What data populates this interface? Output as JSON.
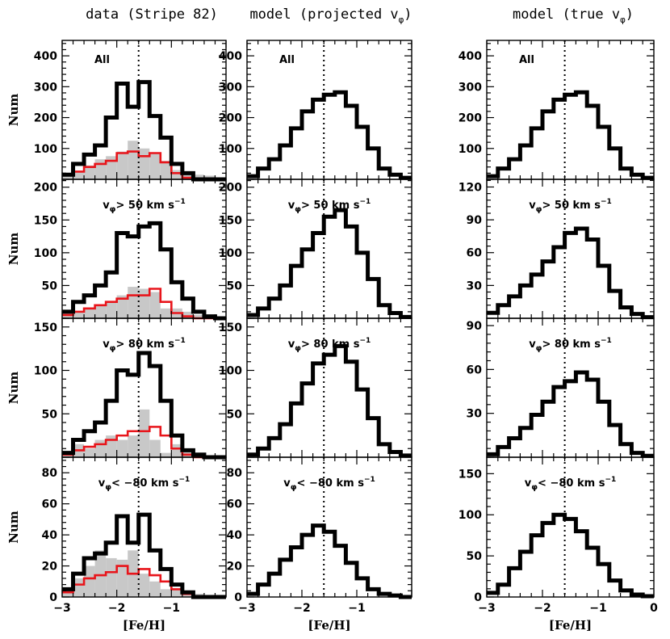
{
  "column_titles": [
    "data (Stripe 82)",
    "model (projected v",
    "model (true v"
  ],
  "column_title_subscript": "φ",
  "ylabel": "Num",
  "xlabel": "[Fe/H]",
  "colors": {
    "black": "#000000",
    "red": "#e8151b",
    "gray": "#c8c8c8",
    "dotted_line": "#000000"
  },
  "chart_data": [
    {
      "type": "histogram",
      "panel": "data-row1",
      "label": "All",
      "x_range": [
        -3,
        0
      ],
      "ylim": [
        0,
        450
      ],
      "yticks": [
        100,
        200,
        300,
        400
      ],
      "xticks": [
        -3,
        -2,
        -1
      ],
      "dotted_x": -1.6,
      "grid": false,
      "bin_edges": [
        -3.0,
        -2.8,
        -2.6,
        -2.4,
        -2.2,
        -2.0,
        -1.8,
        -1.6,
        -1.4,
        -1.2,
        -1.0,
        -0.8,
        -0.6,
        -0.4,
        -0.2,
        0.0
      ],
      "series": [
        {
          "name": "",
          "style": "gray-filled",
          "values": [
            20,
            25,
            45,
            65,
            75,
            90,
            125,
            100,
            85,
            60,
            30,
            20,
            15,
            12,
            5
          ]
        },
        {
          "name": "",
          "style": "red-step",
          "values": [
            15,
            25,
            40,
            50,
            60,
            85,
            90,
            75,
            85,
            55,
            20,
            5,
            0,
            0,
            0
          ]
        },
        {
          "name": "",
          "style": "black-step",
          "values": [
            15,
            50,
            80,
            110,
            200,
            310,
            235,
            315,
            205,
            135,
            50,
            20,
            0,
            0,
            0
          ]
        }
      ]
    },
    {
      "type": "histogram",
      "panel": "model-proj-row1",
      "label": "All",
      "x_range": [
        -3,
        0
      ],
      "ylim": [
        0,
        450
      ],
      "yticks": [
        100,
        200,
        300,
        400
      ],
      "xticks": [
        -3,
        -2,
        -1
      ],
      "dotted_x": -1.6,
      "grid": false,
      "bin_edges": [
        -3.0,
        -2.8,
        -2.6,
        -2.4,
        -2.2,
        -2.0,
        -1.8,
        -1.6,
        -1.4,
        -1.2,
        -1.0,
        -0.8,
        -0.6,
        -0.4,
        -0.2,
        0.0
      ],
      "series": [
        {
          "name": "",
          "style": "black-step",
          "values": [
            10,
            35,
            65,
            110,
            165,
            220,
            258,
            274,
            282,
            238,
            170,
            100,
            35,
            15,
            5
          ]
        }
      ]
    },
    {
      "type": "histogram",
      "panel": "model-true-row1",
      "label": "All",
      "x_range": [
        -3,
        0
      ],
      "ylim": [
        0,
        450
      ],
      "yticks": [
        100,
        200,
        300,
        400
      ],
      "xticks": [
        -3,
        -2,
        -1,
        0
      ],
      "dotted_x": -1.6,
      "grid": false,
      "bin_edges": [
        -3.0,
        -2.8,
        -2.6,
        -2.4,
        -2.2,
        -2.0,
        -1.8,
        -1.6,
        -1.4,
        -1.2,
        -1.0,
        -0.8,
        -0.6,
        -0.4,
        -0.2,
        0.0
      ],
      "series": [
        {
          "name": "",
          "style": "black-step",
          "values": [
            10,
            35,
            65,
            110,
            165,
            220,
            258,
            274,
            282,
            238,
            170,
            100,
            35,
            15,
            5
          ]
        }
      ]
    },
    {
      "type": "histogram",
      "panel": "data-row2",
      "label": "v_φ> 50 km s^-1",
      "x_range": [
        -3,
        0
      ],
      "ylim": [
        0,
        212
      ],
      "yticks": [
        50,
        100,
        150,
        200
      ],
      "xticks": [
        -3,
        -2,
        -1
      ],
      "dotted_x": -1.6,
      "grid": false,
      "bin_edges": [
        -3.0,
        -2.8,
        -2.6,
        -2.4,
        -2.2,
        -2.0,
        -1.8,
        -1.6,
        -1.4,
        -1.2,
        -1.0,
        -0.8,
        -0.6,
        -0.4,
        -0.2,
        0.0
      ],
      "series": [
        {
          "name": "",
          "style": "gray-filled",
          "values": [
            5,
            10,
            15,
            20,
            25,
            35,
            48,
            45,
            40,
            15,
            15,
            10,
            5,
            0,
            0
          ]
        },
        {
          "name": "",
          "style": "red-step",
          "values": [
            5,
            10,
            15,
            20,
            25,
            30,
            35,
            35,
            45,
            25,
            8,
            3,
            0,
            0,
            0
          ]
        },
        {
          "name": "",
          "style": "black-step",
          "values": [
            10,
            25,
            35,
            50,
            70,
            130,
            125,
            140,
            145,
            105,
            55,
            30,
            10,
            3,
            0
          ]
        }
      ]
    },
    {
      "type": "histogram",
      "panel": "model-proj-row2",
      "label": "v_φ> 50 km s^-1",
      "x_range": [
        -3,
        0
      ],
      "ylim": [
        0,
        212
      ],
      "yticks": [
        50,
        100,
        150,
        200
      ],
      "xticks": [
        -3,
        -2,
        -1
      ],
      "dotted_x": -1.6,
      "grid": false,
      "bin_edges": [
        -3.0,
        -2.8,
        -2.6,
        -2.4,
        -2.2,
        -2.0,
        -1.8,
        -1.6,
        -1.4,
        -1.2,
        -1.0,
        -0.8,
        -0.6,
        -0.4,
        -0.2,
        0.0
      ],
      "series": [
        {
          "name": "",
          "style": "black-step",
          "values": [
            5,
            15,
            30,
            50,
            80,
            105,
            130,
            155,
            165,
            140,
            100,
            60,
            20,
            8,
            2
          ]
        }
      ]
    },
    {
      "type": "histogram",
      "panel": "model-true-row2",
      "label": "v_φ> 50 km s^-1",
      "x_range": [
        -3,
        0
      ],
      "ylim": [
        0,
        127
      ],
      "yticks": [
        30,
        60,
        90,
        120
      ],
      "xticks": [
        -3,
        -2,
        -1,
        0
      ],
      "dotted_x": -1.6,
      "grid": false,
      "bin_edges": [
        -3.0,
        -2.8,
        -2.6,
        -2.4,
        -2.2,
        -2.0,
        -1.8,
        -1.6,
        -1.4,
        -1.2,
        -1.0,
        -0.8,
        -0.6,
        -0.4,
        -0.2,
        0.0
      ],
      "series": [
        {
          "name": "",
          "style": "black-step",
          "values": [
            5,
            12,
            20,
            30,
            40,
            52,
            65,
            78,
            82,
            72,
            48,
            25,
            10,
            4,
            1
          ]
        }
      ]
    },
    {
      "type": "histogram",
      "panel": "data-row3",
      "label": "v_φ> 80 km s^-1",
      "x_range": [
        -3,
        0
      ],
      "ylim": [
        0,
        160
      ],
      "yticks": [
        50,
        100,
        150
      ],
      "xticks": [
        -3,
        -2,
        -1
      ],
      "dotted_x": -1.6,
      "grid": false,
      "bin_edges": [
        -3.0,
        -2.8,
        -2.6,
        -2.4,
        -2.2,
        -2.0,
        -1.8,
        -1.6,
        -1.4,
        -1.2,
        -1.0,
        -0.8,
        -0.6,
        -0.4,
        -0.2,
        0.0
      ],
      "series": [
        {
          "name": "",
          "style": "gray-filled",
          "values": [
            5,
            15,
            10,
            20,
            25,
            20,
            25,
            55,
            20,
            5,
            15,
            10,
            5,
            0,
            0
          ]
        },
        {
          "name": "",
          "style": "red-step",
          "values": [
            3,
            8,
            12,
            15,
            20,
            25,
            30,
            30,
            35,
            25,
            10,
            3,
            0,
            0,
            0
          ]
        },
        {
          "name": "",
          "style": "black-step",
          "values": [
            5,
            20,
            30,
            40,
            65,
            100,
            95,
            120,
            105,
            65,
            25,
            8,
            3,
            0,
            0
          ]
        }
      ]
    },
    {
      "type": "histogram",
      "panel": "model-proj-row3",
      "label": "v_φ> 80 km s^-1",
      "x_range": [
        -3,
        0
      ],
      "ylim": [
        0,
        160
      ],
      "yticks": [
        50,
        100,
        150
      ],
      "xticks": [
        -3,
        -2,
        -1
      ],
      "dotted_x": -1.6,
      "grid": false,
      "bin_edges": [
        -3.0,
        -2.8,
        -2.6,
        -2.4,
        -2.2,
        -2.0,
        -1.8,
        -1.6,
        -1.4,
        -1.2,
        -1.0,
        -0.8,
        -0.6,
        -0.4,
        -0.2,
        0.0
      ],
      "series": [
        {
          "name": "",
          "style": "black-step",
          "values": [
            3,
            10,
            22,
            38,
            62,
            85,
            108,
            118,
            128,
            110,
            78,
            45,
            15,
            6,
            2
          ]
        }
      ]
    },
    {
      "type": "histogram",
      "panel": "model-true-row3",
      "label": "v_φ> 80 km s^-1",
      "x_range": [
        -3,
        0
      ],
      "ylim": [
        0,
        95
      ],
      "yticks": [
        30,
        60,
        90
      ],
      "xticks": [
        -3,
        -2,
        -1,
        0
      ],
      "dotted_x": -1.6,
      "grid": false,
      "bin_edges": [
        -3.0,
        -2.8,
        -2.6,
        -2.4,
        -2.2,
        -2.0,
        -1.8,
        -1.6,
        -1.4,
        -1.2,
        -1.0,
        -0.8,
        -0.6,
        -0.4,
        -0.2,
        0.0
      ],
      "series": [
        {
          "name": "",
          "style": "black-step",
          "values": [
            2,
            7,
            13,
            20,
            29,
            38,
            48,
            52,
            58,
            53,
            38,
            22,
            9,
            3,
            1
          ]
        }
      ]
    },
    {
      "type": "histogram",
      "panel": "data-row4",
      "label": "v_φ< −80 km s^-1",
      "x_range": [
        -3,
        0
      ],
      "ylim": [
        0,
        90
      ],
      "yticks": [
        0,
        20,
        40,
        60,
        80
      ],
      "xticks": [
        -3,
        -2,
        -1
      ],
      "dotted_x": -1.6,
      "grid": false,
      "bin_edges": [
        -3.0,
        -2.8,
        -2.6,
        -2.4,
        -2.2,
        -2.0,
        -1.8,
        -1.6,
        -1.4,
        -1.2,
        -1.0,
        -0.8,
        -0.6,
        -0.4,
        -0.2,
        0.0
      ],
      "series": [
        {
          "name": "",
          "style": "gray-filled",
          "values": [
            4,
            12,
            20,
            30,
            25,
            24,
            30,
            15,
            10,
            5,
            5,
            3,
            2,
            0,
            0
          ]
        },
        {
          "name": "",
          "style": "red-step",
          "values": [
            3,
            8,
            12,
            14,
            16,
            20,
            15,
            18,
            14,
            10,
            5,
            2,
            0,
            0,
            0
          ]
        },
        {
          "name": "",
          "style": "black-step",
          "values": [
            5,
            15,
            25,
            28,
            35,
            52,
            35,
            53,
            30,
            18,
            8,
            3,
            0,
            0,
            0
          ]
        }
      ]
    },
    {
      "type": "histogram",
      "panel": "model-proj-row4",
      "label": "v_φ< −80 km s^-1",
      "x_range": [
        -3,
        0
      ],
      "ylim": [
        0,
        90
      ],
      "yticks": [
        0,
        20,
        40,
        60,
        80
      ],
      "xticks": [
        -3,
        -2,
        -1
      ],
      "dotted_x": -1.6,
      "grid": false,
      "bin_edges": [
        -3.0,
        -2.8,
        -2.6,
        -2.4,
        -2.2,
        -2.0,
        -1.8,
        -1.6,
        -1.4,
        -1.2,
        -1.0,
        -0.8,
        -0.6,
        -0.4,
        -0.2,
        0.0
      ],
      "series": [
        {
          "name": "",
          "style": "black-step",
          "values": [
            2,
            8,
            15,
            24,
            32,
            40,
            46,
            42,
            33,
            22,
            12,
            5,
            2,
            1,
            0
          ]
        }
      ]
    },
    {
      "type": "histogram",
      "panel": "model-true-row4",
      "label": "v_φ< −80 km s^-1",
      "x_range": [
        -3,
        0
      ],
      "ylim": [
        0,
        170
      ],
      "yticks": [
        0,
        50,
        100,
        150
      ],
      "xticks": [
        -3,
        -2,
        -1,
        0
      ],
      "dotted_x": -1.6,
      "grid": false,
      "bin_edges": [
        -3.0,
        -2.8,
        -2.6,
        -2.4,
        -2.2,
        -2.0,
        -1.8,
        -1.6,
        -1.4,
        -1.2,
        -1.0,
        -0.8,
        -0.6,
        -0.4,
        -0.2,
        0.0
      ],
      "series": [
        {
          "name": "",
          "style": "black-step",
          "values": [
            5,
            15,
            35,
            55,
            75,
            90,
            100,
            95,
            80,
            60,
            40,
            20,
            8,
            3,
            1
          ]
        }
      ]
    }
  ]
}
